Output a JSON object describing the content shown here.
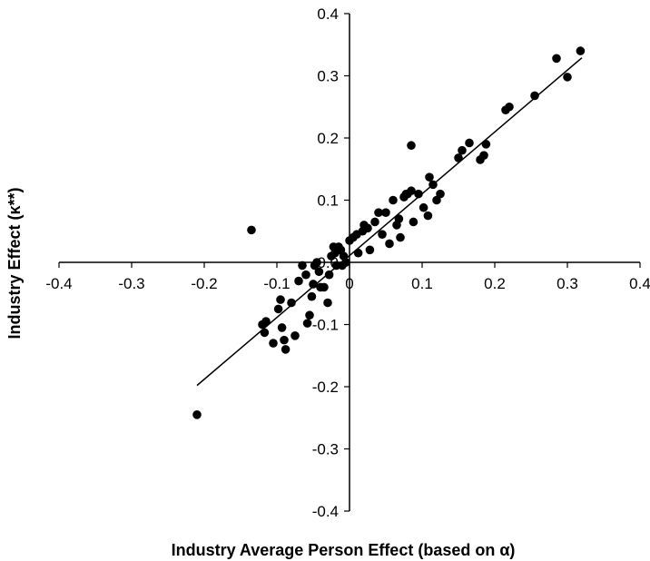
{
  "chart_data": {
    "type": "scatter",
    "title": "",
    "xlabel": "Industry Average Person Effect (based on α)",
    "ylabel": "Industry Effect (κ**)",
    "xlim": [
      -0.4,
      0.4
    ],
    "ylim": [
      -0.4,
      0.4
    ],
    "x_ticks": [
      "-0.4",
      "-0.3",
      "-0.2",
      "-0.1",
      "0",
      "0.1",
      "0.2",
      "0.3",
      "0.4"
    ],
    "y_ticks": [
      "0.4",
      "0.3",
      "0.2",
      "0.1",
      "0.0",
      "-0.1",
      "-0.2",
      "-0.3",
      "-0.4"
    ],
    "grid": false,
    "legend": "none",
    "trend_line": {
      "x": [
        -0.21,
        0.32
      ],
      "y": [
        -0.198,
        0.329
      ]
    },
    "series": [
      {
        "marker_color": "#000000",
        "points": [
          [
            -0.21,
            -0.245
          ],
          [
            -0.135,
            0.052
          ],
          [
            -0.12,
            -0.1
          ],
          [
            -0.117,
            -0.113
          ],
          [
            -0.115,
            -0.095
          ],
          [
            -0.105,
            -0.13
          ],
          [
            -0.098,
            -0.075
          ],
          [
            -0.095,
            -0.06
          ],
          [
            -0.093,
            -0.105
          ],
          [
            -0.09,
            -0.125
          ],
          [
            -0.088,
            -0.14
          ],
          [
            -0.08,
            -0.065
          ],
          [
            -0.075,
            -0.118
          ],
          [
            -0.07,
            -0.03
          ],
          [
            -0.065,
            -0.005
          ],
          [
            -0.06,
            -0.02
          ],
          [
            -0.058,
            -0.098
          ],
          [
            -0.055,
            -0.085
          ],
          [
            -0.052,
            -0.055
          ],
          [
            -0.05,
            -0.035
          ],
          [
            -0.048,
            -0.005
          ],
          [
            -0.045,
            0.0
          ],
          [
            -0.042,
            -0.015
          ],
          [
            -0.04,
            -0.04
          ],
          [
            -0.035,
            -0.04
          ],
          [
            -0.03,
            -0.065
          ],
          [
            -0.028,
            -0.02
          ],
          [
            -0.025,
            0.01
          ],
          [
            -0.022,
            0.025
          ],
          [
            -0.02,
            0.015
          ],
          [
            -0.018,
            -0.005
          ],
          [
            -0.015,
            0.025
          ],
          [
            -0.012,
            0.02
          ],
          [
            -0.01,
            -0.005
          ],
          [
            -0.008,
            0.01
          ],
          [
            -0.005,
            0.0
          ],
          [
            0.0,
            0.035
          ],
          [
            0.005,
            0.04
          ],
          [
            0.01,
            0.045
          ],
          [
            0.012,
            0.015
          ],
          [
            0.018,
            0.05
          ],
          [
            0.02,
            0.06
          ],
          [
            0.025,
            0.055
          ],
          [
            0.028,
            0.02
          ],
          [
            0.035,
            0.065
          ],
          [
            0.04,
            0.08
          ],
          [
            0.045,
            0.045
          ],
          [
            0.05,
            0.08
          ],
          [
            0.055,
            0.03
          ],
          [
            0.06,
            0.1
          ],
          [
            0.065,
            0.06
          ],
          [
            0.068,
            0.07
          ],
          [
            0.07,
            0.04
          ],
          [
            0.075,
            0.105
          ],
          [
            0.078,
            0.11
          ],
          [
            0.08,
            0.11
          ],
          [
            0.085,
            0.115
          ],
          [
            0.085,
            0.188
          ],
          [
            0.088,
            0.065
          ],
          [
            0.095,
            0.11
          ],
          [
            0.102,
            0.088
          ],
          [
            0.108,
            0.075
          ],
          [
            0.11,
            0.137
          ],
          [
            0.115,
            0.125
          ],
          [
            0.12,
            0.1
          ],
          [
            0.125,
            0.11
          ],
          [
            0.15,
            0.168
          ],
          [
            0.155,
            0.18
          ],
          [
            0.165,
            0.192
          ],
          [
            0.18,
            0.165
          ],
          [
            0.185,
            0.172
          ],
          [
            0.188,
            0.19
          ],
          [
            0.215,
            0.245
          ],
          [
            0.22,
            0.25
          ],
          [
            0.255,
            0.268
          ],
          [
            0.285,
            0.328
          ],
          [
            0.3,
            0.298
          ],
          [
            0.318,
            0.34
          ]
        ]
      }
    ]
  }
}
